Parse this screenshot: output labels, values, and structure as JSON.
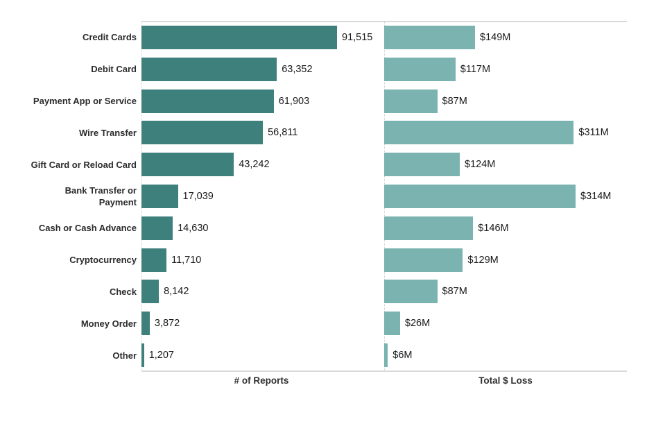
{
  "chart": {
    "left_axis_title": "# of Reports",
    "right_axis_title": "Total $ Loss",
    "colors": {
      "reports_bar": "#3d807c",
      "loss_bar": "#7ab3b0",
      "axis_line": "#d9d9d9",
      "dotted_baseline": "#cfcfcf",
      "text": "#1a1a1a"
    }
  },
  "chart_data": {
    "type": "bar",
    "orientation": "horizontal",
    "title": "",
    "grid": "off",
    "legend": "none",
    "categories": [
      "Credit Cards",
      "Debit Card",
      "Payment App or Service",
      "Wire Transfer",
      "Gift Card or Reload Card",
      "Bank Transfer or\nPayment",
      "Cash or Cash Advance",
      "Cryptocurrency",
      "Check",
      "Money Order",
      "Other"
    ],
    "series": [
      {
        "name": "# of Reports",
        "xlabel": "# of Reports",
        "xlim": [
          0,
          91515
        ],
        "values": [
          91515,
          63352,
          61903,
          56811,
          43242,
          17039,
          14630,
          11710,
          8142,
          3872,
          1207
        ],
        "value_labels": [
          "91,515",
          "63,352",
          "61,903",
          "56,811",
          "43,242",
          "17,039",
          "14,630",
          "11,710",
          "8,142",
          "3,872",
          "1,207"
        ]
      },
      {
        "name": "Total $ Loss",
        "xlabel": "Total $ Loss",
        "xlim": [
          0,
          314
        ],
        "values_millions_usd": [
          149,
          117,
          87,
          311,
          124,
          314,
          146,
          129,
          87,
          26,
          6
        ],
        "value_labels": [
          "$149M",
          "$117M",
          "$87M",
          "$311M",
          "$124M",
          "$314M",
          "$146M",
          "$129M",
          "$87M",
          "$26M",
          "$6M"
        ]
      }
    ]
  }
}
